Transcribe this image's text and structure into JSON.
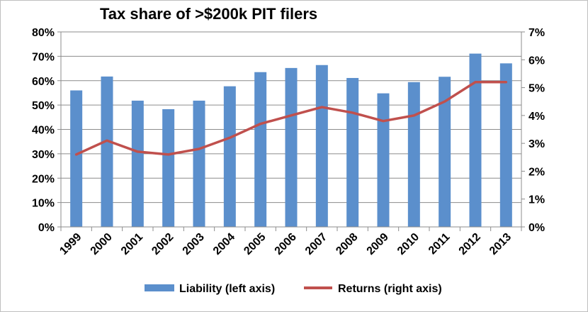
{
  "chart_data": {
    "type": "bar",
    "title": "Tax share of >$200k PIT filers",
    "categories": [
      "1999",
      "2000",
      "2001",
      "2002",
      "2003",
      "2004",
      "2005",
      "2006",
      "2007",
      "2008",
      "2009",
      "2010",
      "2011",
      "2012",
      "2013"
    ],
    "series": [
      {
        "name": "Liability (left axis)",
        "type": "bar",
        "axis": "left",
        "color": "#5b8fcc",
        "values": [
          0.56,
          0.617,
          0.518,
          0.483,
          0.518,
          0.577,
          0.635,
          0.652,
          0.664,
          0.611,
          0.548,
          0.594,
          0.616,
          0.711,
          0.671
        ]
      },
      {
        "name": "Returns (right axis)",
        "type": "line",
        "axis": "right",
        "color": "#c0504d",
        "values": [
          0.026,
          0.031,
          0.027,
          0.026,
          0.028,
          0.032,
          0.037,
          0.04,
          0.043,
          0.041,
          0.038,
          0.04,
          0.045,
          0.052,
          0.052
        ]
      }
    ],
    "left_axis": {
      "min": 0,
      "max": 0.8,
      "ticks": [
        "0%",
        "10%",
        "20%",
        "30%",
        "40%",
        "50%",
        "60%",
        "70%",
        "80%"
      ]
    },
    "right_axis": {
      "min": 0,
      "max": 0.07,
      "ticks": [
        "0%",
        "1%",
        "2%",
        "3%",
        "4%",
        "5%",
        "6%",
        "7%"
      ]
    },
    "grid": true,
    "legend_position": "bottom"
  }
}
